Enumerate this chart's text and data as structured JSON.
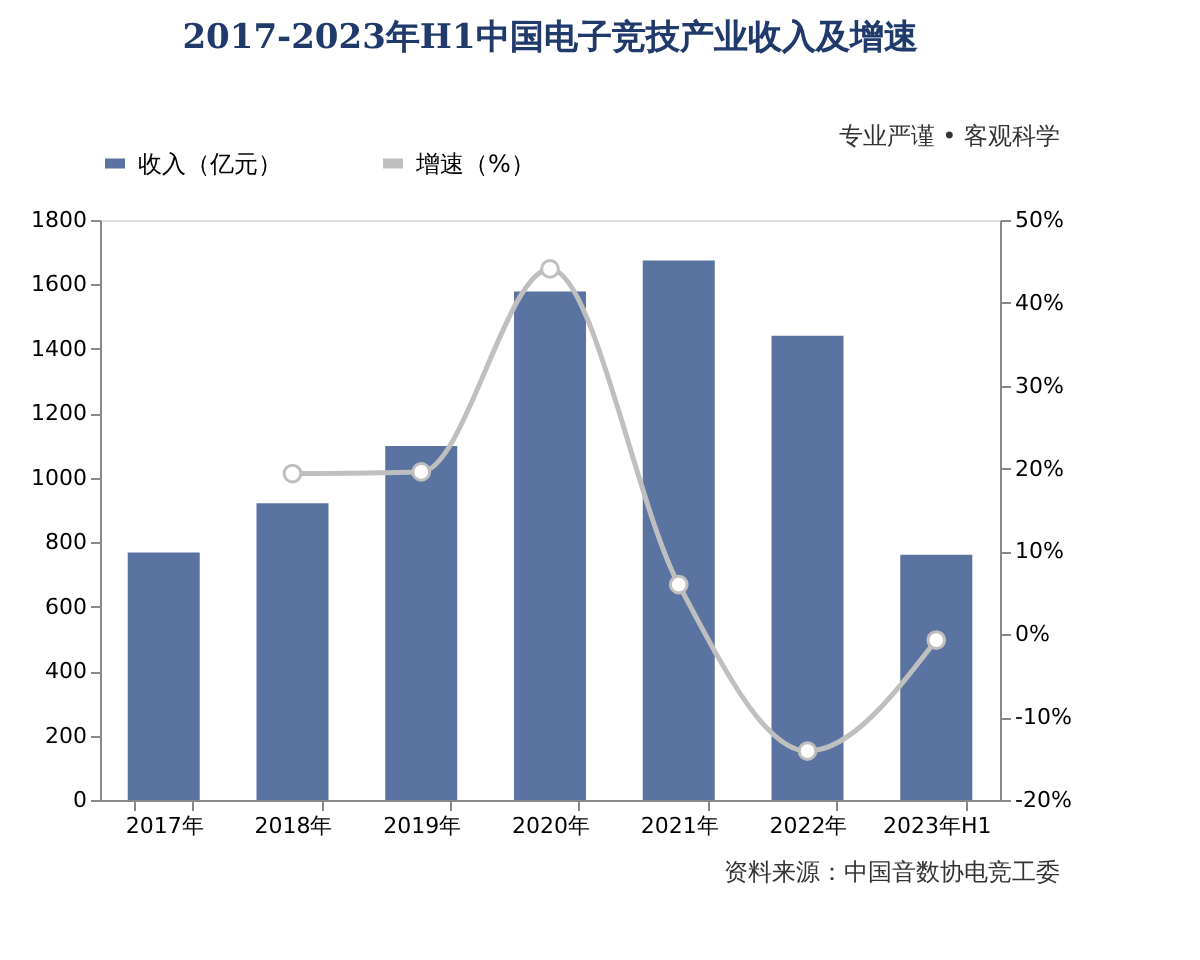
{
  "chart_data": {
    "type": "bar",
    "title": "2017-2023年H1中国电子竞技产业收入及增速",
    "categories": [
      "2017年",
      "2018年",
      "2019年",
      "2020年",
      "2021年",
      "2022年",
      "2023年H1"
    ],
    "series": [
      {
        "name": "收入（亿元）",
        "color": "#5b73a0",
        "values": [
          768,
          921,
          1099,
          1578,
          1674,
          1441,
          761
        ]
      },
      {
        "name": "增速（%）",
        "type": "line",
        "axis": "y2",
        "color": "#bfbfbf",
        "marker": "circle",
        "values": [
          null,
          19.4,
          19.6,
          44.1,
          6.0,
          -14.1,
          -0.7
        ]
      }
    ],
    "ylim": [
      0,
      1800
    ],
    "yticks": [
      0,
      200,
      400,
      600,
      800,
      1000,
      1200,
      1400,
      1600,
      1800
    ],
    "y2lim": [
      -20,
      50
    ],
    "y2ticks": [
      {
        "value": -20,
        "label": "-20%"
      },
      {
        "value": -10,
        "label": "-10%"
      },
      {
        "value": 0,
        "label": "0%"
      },
      {
        "value": 10,
        "label": "10%"
      },
      {
        "value": 20,
        "label": "20%"
      },
      {
        "value": 30,
        "label": "30%"
      },
      {
        "value": 40,
        "label": "40%"
      },
      {
        "value": 50,
        "label": "50%"
      }
    ],
    "grid": false,
    "legend": "top",
    "annotations": [
      "专业严谨 • 客观科学",
      "资料来源：中国音数协电竞工委"
    ]
  }
}
